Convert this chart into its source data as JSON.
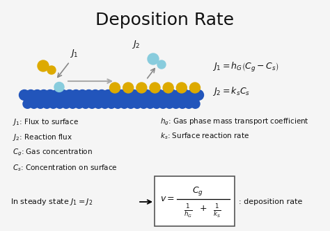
{
  "title": "Deposition Rate",
  "title_fontsize": 18,
  "bg_color": "#f5f5f5",
  "text_color": "#111111",
  "blue_color": "#2255bb",
  "yellow_color": "#ddaa00",
  "cyan_color": "#88ccdd",
  "eq1": "$J_1 = h_G\\left(C_g - C_s\\right)$",
  "eq2": "$J_2 = k_s C_s$",
  "legend_left": [
    "$J_1$: Flux to surface",
    "$J_2$: Reaction flux",
    "$C_g$: Gas concentration",
    "$C_s$: Concentration on surface"
  ],
  "legend_right": [
    "$h_g$: Gas phase mass transport coefficient",
    "$k_s$: Surface reaction rate"
  ],
  "steady_state_label": "In steady state $J_1 = J_2$",
  "deposition_rate_label": ": deposition rate"
}
